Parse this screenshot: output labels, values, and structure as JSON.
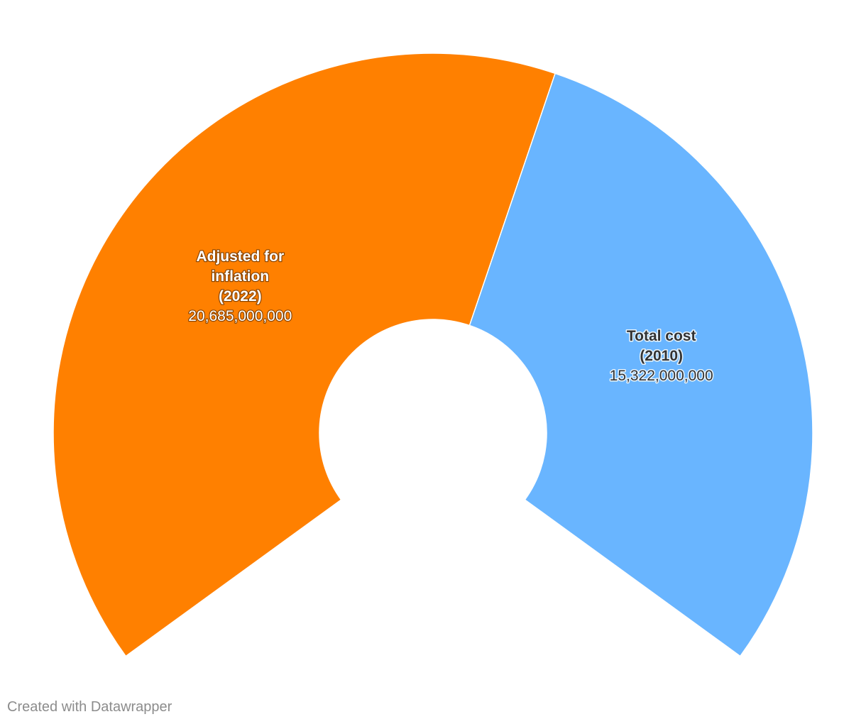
{
  "chart_data": {
    "type": "pie",
    "variant": "donut-arc",
    "slices": [
      {
        "label_lines": [
          "Adjusted for",
          "inflation",
          "(2022)"
        ],
        "value": 20685000000,
        "value_label": "20,685,000,000",
        "color": "#ff8000",
        "label_style": "light"
      },
      {
        "label_lines": [
          "Total cost",
          "(2010)"
        ],
        "value": 15322000000,
        "value_label": "15,322,000,000",
        "color": "#69b5ff",
        "label_style": "dark"
      }
    ]
  },
  "footer": {
    "credit": "Created with Datawrapper"
  }
}
